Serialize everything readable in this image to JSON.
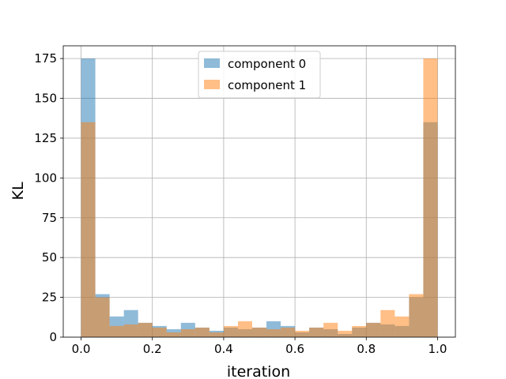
{
  "chart_data": {
    "type": "bar",
    "title": "",
    "xlabel": "iteration",
    "ylabel": "KL",
    "xlim": [
      -0.05,
      1.05
    ],
    "ylim": [
      0,
      183
    ],
    "xticks": [
      "0.0",
      "0.2",
      "0.4",
      "0.6",
      "0.8",
      "1.0"
    ],
    "yticks": [
      "0",
      "25",
      "50",
      "75",
      "100",
      "125",
      "150",
      "175"
    ],
    "grid": true,
    "legend_position": "upper center",
    "bin_edges": [
      0.0,
      0.04,
      0.08,
      0.12,
      0.16,
      0.2,
      0.24,
      0.28,
      0.32,
      0.36,
      0.4,
      0.44,
      0.48,
      0.52,
      0.56,
      0.6,
      0.64,
      0.68,
      0.72,
      0.76,
      0.8,
      0.84,
      0.88,
      0.92,
      0.96,
      1.0
    ],
    "series": [
      {
        "name": "component 0",
        "color": "#1f77b4",
        "values": [
          175,
          27,
          13,
          17,
          9,
          7,
          5,
          9,
          6,
          4,
          6,
          5,
          6,
          10,
          7,
          3,
          6,
          5,
          2,
          6,
          9,
          8,
          7,
          25,
          135
        ]
      },
      {
        "name": "component 1",
        "color": "#ff7f0e",
        "values": [
          135,
          25,
          7,
          8,
          9,
          6,
          3,
          5,
          6,
          3,
          7,
          10,
          6,
          5,
          6,
          4,
          6,
          9,
          4,
          7,
          9,
          17,
          13,
          27,
          175
        ]
      }
    ]
  }
}
